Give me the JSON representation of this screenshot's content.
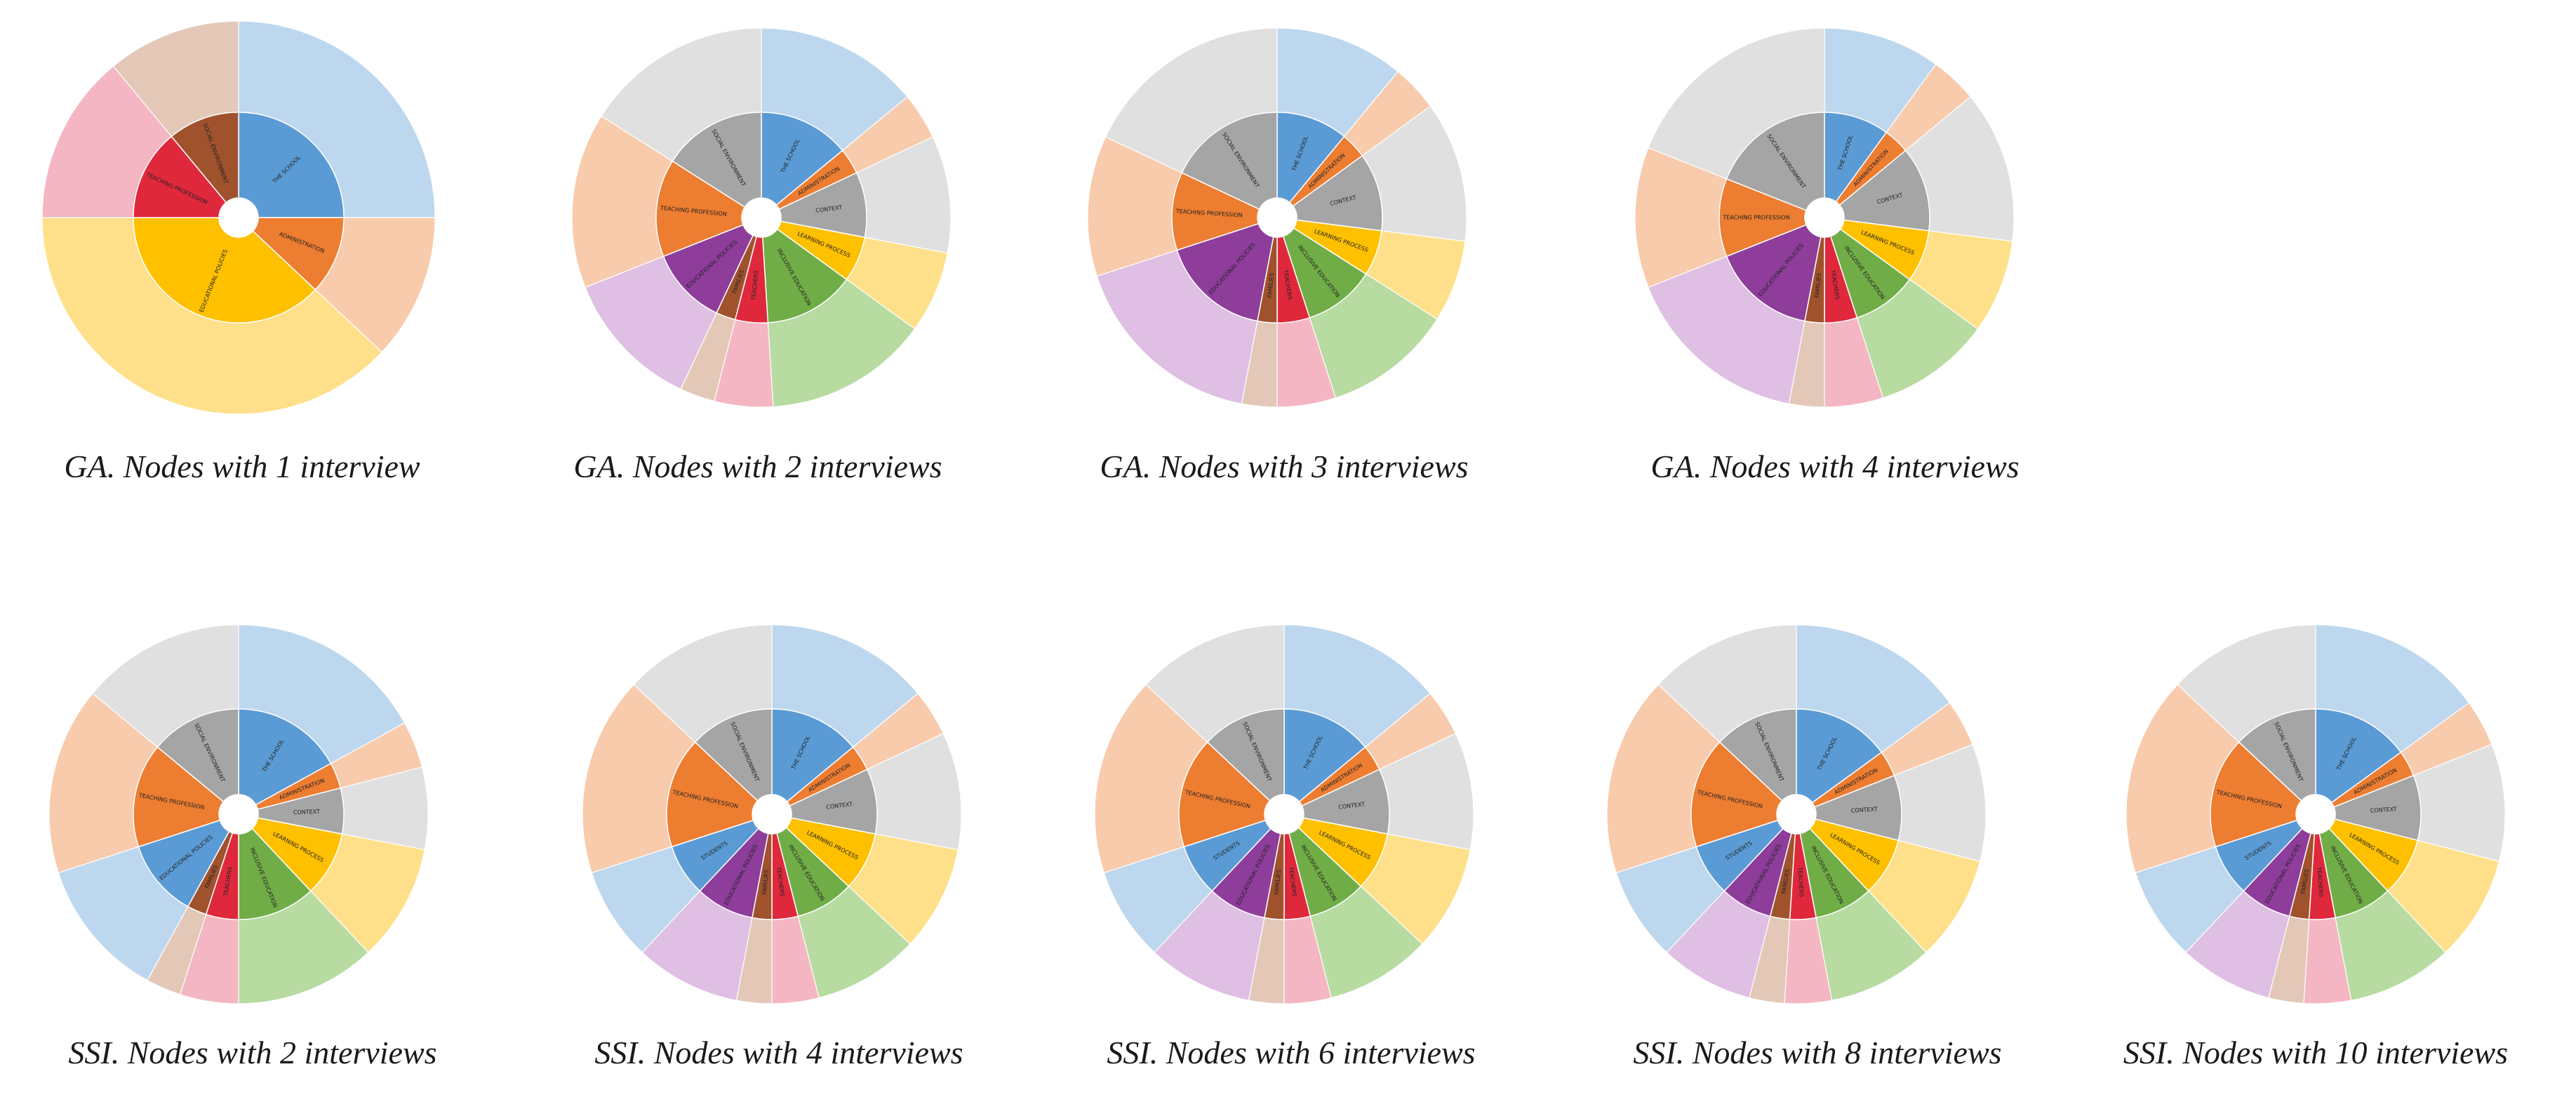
{
  "figure": {
    "colors": {
      "blue": "#5b9bd5",
      "orange": "#ed7d31",
      "gray": "#a5a5a5",
      "yellow": "#ffc000",
      "green": "#70ad47",
      "red": "#e0283c",
      "purple": "#8e3d9b",
      "brown": "#a0522d",
      "lightBlue": "#bdd7ee",
      "lightOrange": "#f8cbad",
      "lightGray": "#e0e0e0",
      "lightYellow": "#ffe08a",
      "lightGreen": "#b7dba0",
      "pink": "#f4b6c2",
      "lightPurple": "#dfbfe3",
      "beige": "#e3c8b8"
    }
  },
  "chart_data": [
    {
      "type": "sunburst",
      "title": "GA. Nodes with 1 interview",
      "inner": [
        {
          "name": "THE SCHOOL",
          "value": 25,
          "color": "blue"
        },
        {
          "name": "ADMINISTRATION",
          "value": 12,
          "color": "orange"
        },
        {
          "name": "EDUCATIONAL POLICIES",
          "value": 38,
          "color": "yellow"
        },
        {
          "name": "TEACHING PROFESSION",
          "value": 14,
          "color": "red"
        },
        {
          "name": "SOCIAL ENVIRONMENT",
          "value": 11,
          "color": "brown"
        }
      ],
      "outer": [
        {
          "value": 25,
          "color": "lightBlue"
        },
        {
          "value": 12,
          "color": "lightOrange"
        },
        {
          "value": 38,
          "color": "lightYellow"
        },
        {
          "value": 14,
          "color": "pink"
        },
        {
          "value": 11,
          "color": "beige"
        }
      ]
    },
    {
      "type": "sunburst",
      "title": "GA. Nodes with 2 interviews",
      "inner": [
        {
          "name": "THE SCHOOL",
          "value": 14,
          "color": "blue"
        },
        {
          "name": "ADMINISTRATION",
          "value": 4,
          "color": "orange"
        },
        {
          "name": "CONTEXT",
          "value": 10,
          "color": "gray"
        },
        {
          "name": "LEARNING PROCESS",
          "value": 7,
          "color": "yellow"
        },
        {
          "name": "INCLUSIVE EDUCATION",
          "value": 14,
          "color": "green"
        },
        {
          "name": "TEACHERS",
          "value": 5,
          "color": "red"
        },
        {
          "name": "FAMILIES",
          "value": 3,
          "color": "brown"
        },
        {
          "name": "EDUCATIONAL POLICIES",
          "value": 12,
          "color": "purple"
        },
        {
          "name": "TEACHING PROFESSION",
          "value": 15,
          "color": "orange"
        },
        {
          "name": "SOCIAL ENVIRONMENT",
          "value": 16,
          "color": "gray"
        }
      ],
      "outer": [
        {
          "value": 14,
          "color": "lightBlue"
        },
        {
          "value": 4,
          "color": "lightOrange"
        },
        {
          "value": 10,
          "color": "lightGray"
        },
        {
          "value": 7,
          "color": "lightYellow"
        },
        {
          "value": 14,
          "color": "lightGreen"
        },
        {
          "value": 5,
          "color": "pink"
        },
        {
          "value": 3,
          "color": "beige"
        },
        {
          "value": 12,
          "color": "lightPurple"
        },
        {
          "value": 15,
          "color": "lightOrange"
        },
        {
          "value": 16,
          "color": "lightGray"
        }
      ]
    },
    {
      "type": "sunburst",
      "title": "GA. Nodes with 3 interviews",
      "inner": [
        {
          "name": "THE SCHOOL",
          "value": 11,
          "color": "blue"
        },
        {
          "name": "ADMINISTRATION",
          "value": 4,
          "color": "orange"
        },
        {
          "name": "CONTEXT",
          "value": 12,
          "color": "gray"
        },
        {
          "name": "LEARNING PROCESS",
          "value": 7,
          "color": "yellow"
        },
        {
          "name": "INCLUSIVE EDUCATION",
          "value": 11,
          "color": "green"
        },
        {
          "name": "TEACHERS",
          "value": 5,
          "color": "red"
        },
        {
          "name": "FAMILIES",
          "value": 3,
          "color": "brown"
        },
        {
          "name": "EDUCATIONAL POLICIES",
          "value": 17,
          "color": "purple"
        },
        {
          "name": "TEACHING PROFESSION",
          "value": 12,
          "color": "orange"
        },
        {
          "name": "SOCIAL ENVIRONMENT",
          "value": 18,
          "color": "gray"
        }
      ],
      "outer": [
        {
          "value": 11,
          "color": "lightBlue"
        },
        {
          "value": 4,
          "color": "lightOrange"
        },
        {
          "value": 12,
          "color": "lightGray"
        },
        {
          "value": 7,
          "color": "lightYellow"
        },
        {
          "value": 11,
          "color": "lightGreen"
        },
        {
          "value": 5,
          "color": "pink"
        },
        {
          "value": 3,
          "color": "beige"
        },
        {
          "value": 17,
          "color": "lightPurple"
        },
        {
          "value": 12,
          "color": "lightOrange"
        },
        {
          "value": 18,
          "color": "lightGray"
        }
      ]
    },
    {
      "type": "sunburst",
      "title": "GA. Nodes with 4 interviews",
      "inner": [
        {
          "name": "THE SCHOOL",
          "value": 10,
          "color": "blue"
        },
        {
          "name": "ADMINISTRATION",
          "value": 4,
          "color": "orange"
        },
        {
          "name": "CONTEXT",
          "value": 13,
          "color": "gray"
        },
        {
          "name": "LEARNING PROCESS",
          "value": 8,
          "color": "yellow"
        },
        {
          "name": "INCLUSIVE EDUCATION",
          "value": 10,
          "color": "green"
        },
        {
          "name": "TEACHERS",
          "value": 5,
          "color": "red"
        },
        {
          "name": "FAMILIES",
          "value": 3,
          "color": "brown"
        },
        {
          "name": "EDUCATIONAL POLICIES",
          "value": 16,
          "color": "purple"
        },
        {
          "name": "TEACHING PROFESSION",
          "value": 12,
          "color": "orange"
        },
        {
          "name": "SOCIAL ENVIRONMENT",
          "value": 19,
          "color": "gray"
        }
      ],
      "outer": [
        {
          "value": 10,
          "color": "lightBlue"
        },
        {
          "value": 4,
          "color": "lightOrange"
        },
        {
          "value": 13,
          "color": "lightGray"
        },
        {
          "value": 8,
          "color": "lightYellow"
        },
        {
          "value": 10,
          "color": "lightGreen"
        },
        {
          "value": 5,
          "color": "pink"
        },
        {
          "value": 3,
          "color": "beige"
        },
        {
          "value": 16,
          "color": "lightPurple"
        },
        {
          "value": 12,
          "color": "lightOrange"
        },
        {
          "value": 19,
          "color": "lightGray"
        }
      ]
    },
    {
      "type": "sunburst",
      "title": "SSI. Nodes with 2 interviews",
      "inner": [
        {
          "name": "THE SCHOOL",
          "value": 17,
          "color": "blue"
        },
        {
          "name": "ADMINISTRATION",
          "value": 4,
          "color": "orange"
        },
        {
          "name": "CONTEXT",
          "value": 7,
          "color": "gray"
        },
        {
          "name": "LEARNING PROCESS",
          "value": 10,
          "color": "yellow"
        },
        {
          "name": "INCLUSIVE EDUCATION",
          "value": 12,
          "color": "green"
        },
        {
          "name": "TEACHERS",
          "value": 5,
          "color": "red"
        },
        {
          "name": "FAMILIES",
          "value": 3,
          "color": "brown"
        },
        {
          "name": "EDUCATIONAL POLICIES",
          "value": 12,
          "color": "blue"
        },
        {
          "name": "TEACHING PROFESSION",
          "value": 16,
          "color": "orange"
        },
        {
          "name": "SOCIAL ENVIRONMENT",
          "value": 14,
          "color": "gray"
        }
      ],
      "outer": [
        {
          "value": 17,
          "color": "lightBlue"
        },
        {
          "value": 4,
          "color": "lightOrange"
        },
        {
          "value": 7,
          "color": "lightGray"
        },
        {
          "value": 10,
          "color": "lightYellow"
        },
        {
          "value": 12,
          "color": "lightGreen"
        },
        {
          "value": 5,
          "color": "pink"
        },
        {
          "value": 3,
          "color": "beige"
        },
        {
          "value": 12,
          "color": "lightBlue"
        },
        {
          "value": 16,
          "color": "lightOrange"
        },
        {
          "value": 14,
          "color": "lightGray"
        }
      ]
    },
    {
      "type": "sunburst",
      "title": "SSI. Nodes with 4 interviews",
      "inner": [
        {
          "name": "THE SCHOOL",
          "value": 14,
          "color": "blue"
        },
        {
          "name": "ADMINISTRATION",
          "value": 4,
          "color": "orange"
        },
        {
          "name": "CONTEXT",
          "value": 10,
          "color": "gray"
        },
        {
          "name": "LEARNING PROCESS",
          "value": 9,
          "color": "yellow"
        },
        {
          "name": "INCLUSIVE EDUCATION",
          "value": 9,
          "color": "green"
        },
        {
          "name": "TEACHERS",
          "value": 4,
          "color": "red"
        },
        {
          "name": "FAMILIES",
          "value": 3,
          "color": "brown"
        },
        {
          "name": "EDUCATIONAL POLICIES",
          "value": 9,
          "color": "purple"
        },
        {
          "name": "STUDENTS",
          "value": 8,
          "color": "blue"
        },
        {
          "name": "TEACHING PROFESSION",
          "value": 17,
          "color": "orange"
        },
        {
          "name": "SOCIAL ENVIRONMENT",
          "value": 13,
          "color": "gray"
        }
      ],
      "outer": [
        {
          "value": 14,
          "color": "lightBlue"
        },
        {
          "value": 4,
          "color": "lightOrange"
        },
        {
          "value": 10,
          "color": "lightGray"
        },
        {
          "value": 9,
          "color": "lightYellow"
        },
        {
          "value": 9,
          "color": "lightGreen"
        },
        {
          "value": 4,
          "color": "pink"
        },
        {
          "value": 3,
          "color": "beige"
        },
        {
          "value": 9,
          "color": "lightPurple"
        },
        {
          "value": 8,
          "color": "lightBlue"
        },
        {
          "value": 17,
          "color": "lightOrange"
        },
        {
          "value": 13,
          "color": "lightGray"
        }
      ]
    },
    {
      "type": "sunburst",
      "title": "SSI. Nodes with 6 interviews",
      "inner": [
        {
          "name": "THE SCHOOL",
          "value": 14,
          "color": "blue"
        },
        {
          "name": "ADMINISTRATION",
          "value": 4,
          "color": "orange"
        },
        {
          "name": "CONTEXT",
          "value": 10,
          "color": "gray"
        },
        {
          "name": "LEARNING PROCESS",
          "value": 9,
          "color": "yellow"
        },
        {
          "name": "INCLUSIVE EDUCATION",
          "value": 9,
          "color": "green"
        },
        {
          "name": "TEACHERS",
          "value": 4,
          "color": "red"
        },
        {
          "name": "FAMILIES",
          "value": 3,
          "color": "brown"
        },
        {
          "name": "EDUCATIONAL POLICIES",
          "value": 9,
          "color": "purple"
        },
        {
          "name": "STUDENTS",
          "value": 8,
          "color": "blue"
        },
        {
          "name": "TEACHING PROFESSION",
          "value": 17,
          "color": "orange"
        },
        {
          "name": "SOCIAL ENVIRONMENT",
          "value": 13,
          "color": "gray"
        }
      ],
      "outer": [
        {
          "value": 14,
          "color": "lightBlue"
        },
        {
          "value": 4,
          "color": "lightOrange"
        },
        {
          "value": 10,
          "color": "lightGray"
        },
        {
          "value": 9,
          "color": "lightYellow"
        },
        {
          "value": 9,
          "color": "lightGreen"
        },
        {
          "value": 4,
          "color": "pink"
        },
        {
          "value": 3,
          "color": "beige"
        },
        {
          "value": 9,
          "color": "lightPurple"
        },
        {
          "value": 8,
          "color": "lightBlue"
        },
        {
          "value": 17,
          "color": "lightOrange"
        },
        {
          "value": 13,
          "color": "lightGray"
        }
      ]
    },
    {
      "type": "sunburst",
      "title": "SSI. Nodes with 8 interviews",
      "inner": [
        {
          "name": "THE SCHOOL",
          "value": 15,
          "color": "blue"
        },
        {
          "name": "ADMINISTRATION",
          "value": 4,
          "color": "orange"
        },
        {
          "name": "CONTEXT",
          "value": 10,
          "color": "gray"
        },
        {
          "name": "LEARNING PROCESS",
          "value": 9,
          "color": "yellow"
        },
        {
          "name": "INCLUSIVE EDUCATION",
          "value": 9,
          "color": "green"
        },
        {
          "name": "TEACHERS",
          "value": 4,
          "color": "red"
        },
        {
          "name": "FAMILIES",
          "value": 3,
          "color": "brown"
        },
        {
          "name": "EDUCATIONAL POLICIES",
          "value": 8,
          "color": "purple"
        },
        {
          "name": "STUDENTS",
          "value": 8,
          "color": "blue"
        },
        {
          "name": "TEACHING PROFESSION",
          "value": 17,
          "color": "orange"
        },
        {
          "name": "SOCIAL ENVIRONMENT",
          "value": 13,
          "color": "gray"
        }
      ],
      "outer": [
        {
          "value": 15,
          "color": "lightBlue"
        },
        {
          "value": 4,
          "color": "lightOrange"
        },
        {
          "value": 10,
          "color": "lightGray"
        },
        {
          "value": 9,
          "color": "lightYellow"
        },
        {
          "value": 9,
          "color": "lightGreen"
        },
        {
          "value": 4,
          "color": "pink"
        },
        {
          "value": 3,
          "color": "beige"
        },
        {
          "value": 8,
          "color": "lightPurple"
        },
        {
          "value": 8,
          "color": "lightBlue"
        },
        {
          "value": 17,
          "color": "lightOrange"
        },
        {
          "value": 13,
          "color": "lightGray"
        }
      ]
    },
    {
      "type": "sunburst",
      "title": "SSI. Nodes with 10 interviews",
      "inner": [
        {
          "name": "THE SCHOOL",
          "value": 15,
          "color": "blue"
        },
        {
          "name": "ADMINISTRATION",
          "value": 4,
          "color": "orange"
        },
        {
          "name": "CONTEXT",
          "value": 10,
          "color": "gray"
        },
        {
          "name": "LEARNING PROCESS",
          "value": 9,
          "color": "yellow"
        },
        {
          "name": "INCLUSIVE EDUCATION",
          "value": 9,
          "color": "green"
        },
        {
          "name": "TEACHERS",
          "value": 4,
          "color": "red"
        },
        {
          "name": "FAMILIES",
          "value": 3,
          "color": "brown"
        },
        {
          "name": "EDUCATIONAL POLICIES",
          "value": 8,
          "color": "purple"
        },
        {
          "name": "STUDENTS",
          "value": 8,
          "color": "blue"
        },
        {
          "name": "TEACHING PROFESSION",
          "value": 17,
          "color": "orange"
        },
        {
          "name": "SOCIAL ENVIRONMENT",
          "value": 13,
          "color": "gray"
        }
      ],
      "outer": [
        {
          "value": 15,
          "color": "lightBlue"
        },
        {
          "value": 4,
          "color": "lightOrange"
        },
        {
          "value": 10,
          "color": "lightGray"
        },
        {
          "value": 9,
          "color": "lightYellow"
        },
        {
          "value": 9,
          "color": "lightGreen"
        },
        {
          "value": 4,
          "color": "pink"
        },
        {
          "value": 3,
          "color": "beige"
        },
        {
          "value": 8,
          "color": "lightPurple"
        },
        {
          "value": 8,
          "color": "lightBlue"
        },
        {
          "value": 17,
          "color": "lightOrange"
        },
        {
          "value": 13,
          "color": "lightGray"
        }
      ]
    }
  ]
}
